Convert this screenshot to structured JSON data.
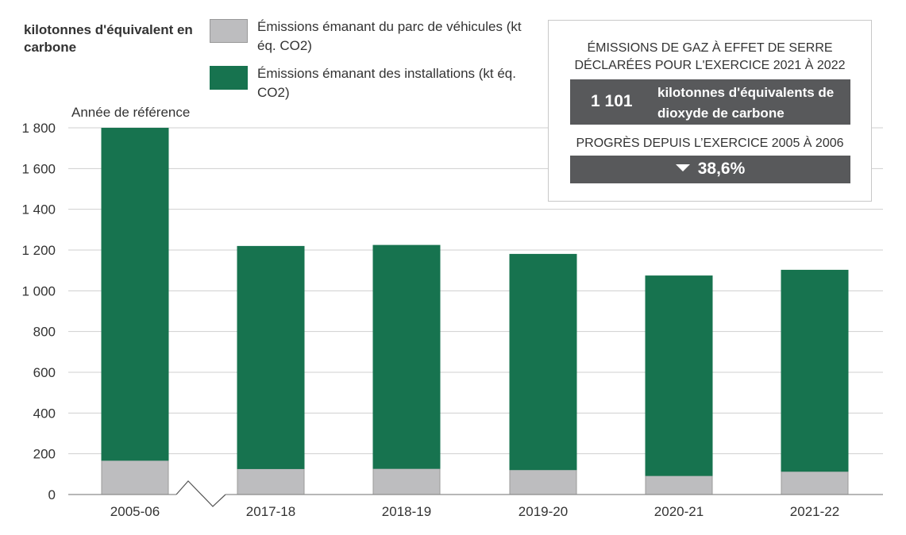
{
  "y_axis_label": "kilotonnes d'équivalent en carbone",
  "reference_label": "Année de référence",
  "legend": [
    {
      "label": "Émissions émanant du parc de véhicules (kt éq. CO2)",
      "color": "#bdbdbf"
    },
    {
      "label": "Émissions émanant des installations (kt éq. CO2)",
      "color": "#17734f"
    }
  ],
  "infobox": {
    "heading1": "ÉMISSIONS DE GAZ À EFFET DE SERRE DÉCLARÉES POUR L'EXERCICE 2021 À 2022",
    "total_value": "1 101",
    "total_unit": "kilotonnes d'équivalents de dioxyde de carbone",
    "heading2": "PROGRÈS DEPUIS L’EXERCICE 2005 À 2006",
    "progress_icon": "triangle-down-icon",
    "progress_value": "38,6%"
  },
  "chart_data": {
    "type": "bar",
    "stacked": true,
    "categories": [
      "2005-06",
      "2017-18",
      "2018-19",
      "2019-20",
      "2020-21",
      "2021-22"
    ],
    "series": [
      {
        "name": "Émissions émanant du parc de véhicules (kt éq. CO2)",
        "values": [
          168,
          127,
          128,
          122,
          93,
          114
        ]
      },
      {
        "name": "Émissions émanant des installations (kt éq. CO2)",
        "values": [
          1630,
          1091,
          1095,
          1057,
          980,
          987
        ]
      }
    ],
    "ylim": [
      0,
      1800
    ],
    "yticks": [
      0,
      200,
      400,
      600,
      800,
      1000,
      1200,
      1400,
      1600,
      1800
    ],
    "ytick_labels": [
      "0",
      "200",
      "400",
      "600",
      "800",
      "1 000",
      "1 200",
      "1 400",
      "1 600",
      "1 800"
    ],
    "grid": true,
    "axis_break_after_category": 0,
    "colors": [
      "#bdbdbf",
      "#17734f"
    ]
  }
}
